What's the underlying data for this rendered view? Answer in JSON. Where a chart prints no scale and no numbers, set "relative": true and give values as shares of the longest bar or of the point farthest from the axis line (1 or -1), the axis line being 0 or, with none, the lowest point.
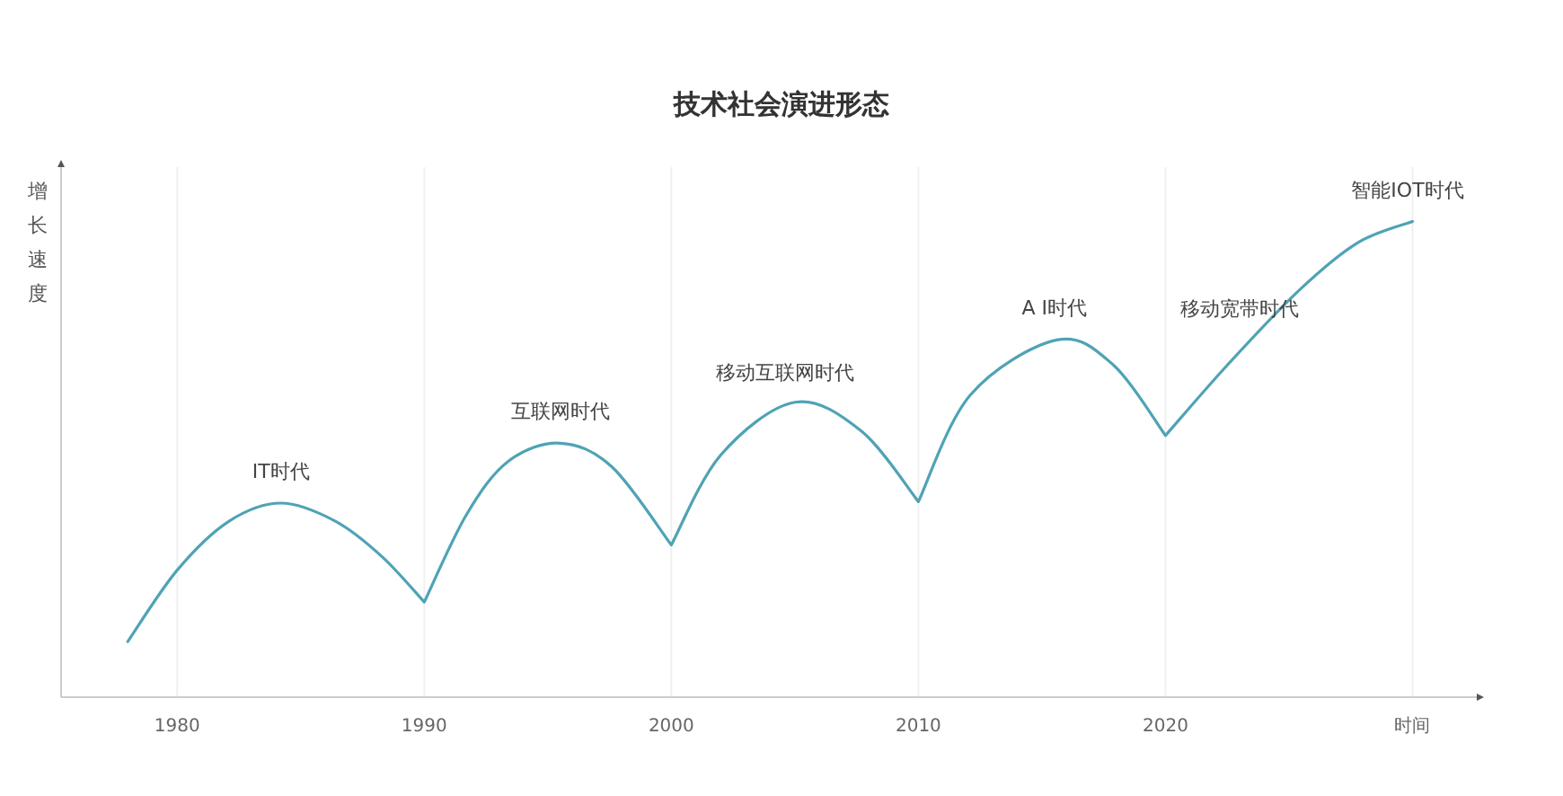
{
  "chart_data": {
    "type": "line",
    "title": "技术社会演进形态",
    "ylabel": "增长速度",
    "relative": true,
    "grid": "x",
    "marker": "none",
    "line_style": "solid",
    "xlim": [
      1975.3,
      2032.6
    ],
    "xticks": [
      1980,
      1990,
      2000,
      2010,
      2020,
      {
        "value": 2030,
        "label": "时间"
      }
    ],
    "series": [
      {
        "color": "#4fa3b5",
        "x": [
          1978,
          1980,
          1982.1,
          1984.2,
          1986.4,
          1988.3,
          1990,
          1991.7,
          1993.4,
          1995.5,
          1997.6,
          2000,
          2002,
          2005,
          2007.7,
          2010,
          2012.1,
          2015.6,
          2017.9,
          2020,
          2022.5,
          2025.4,
          2027.8,
          2030
        ],
        "values": [
          0.117,
          0.267,
          0.37,
          0.408,
          0.37,
          0.295,
          0.2,
          0.383,
          0.496,
          0.534,
          0.484,
          0.32,
          0.509,
          0.62,
          0.559,
          0.411,
          0.635,
          0.751,
          0.698,
          0.55,
          0.698,
          0.855,
          0.956,
          1.0
        ]
      }
    ],
    "annotations": [
      {
        "text": "IT时代",
        "x": 1984.2,
        "y": 0.408
      },
      {
        "text": "互联网时代",
        "x": 1995.5,
        "y": 0.534
      },
      {
        "text": "移动互联网时代",
        "x": 2004.6,
        "y": 0.616
      },
      {
        "text": "A I时代",
        "x": 2015.5,
        "y": 0.751
      },
      {
        "text": "移动宽带时代",
        "x": 2023,
        "y": 0.75
      },
      {
        "text": "智能IOT时代",
        "x": 2029.8,
        "y": 1.0
      }
    ]
  }
}
